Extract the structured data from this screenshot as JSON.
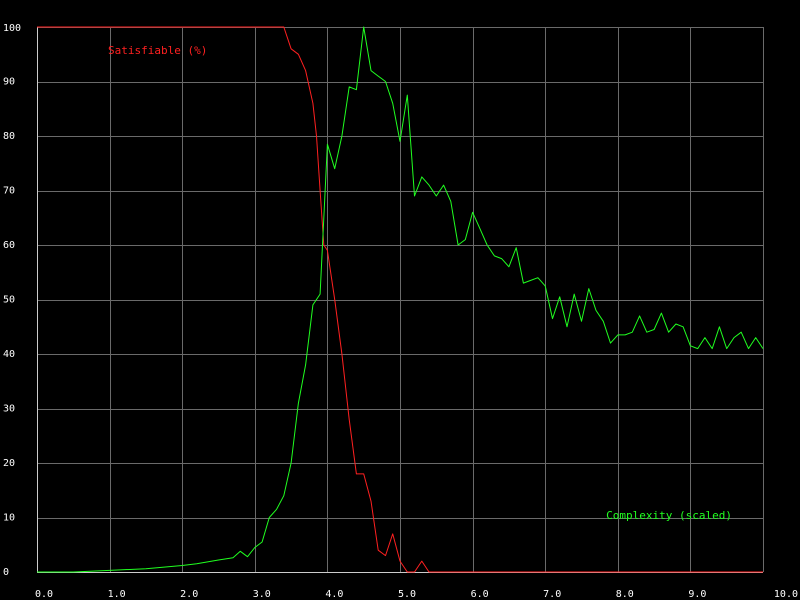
{
  "chart_data": {
    "type": "line",
    "title": "",
    "xlabel": "",
    "ylabel": "",
    "xlim": [
      0,
      10
    ],
    "ylim": [
      0,
      100
    ],
    "x_ticks": [
      "0.0",
      "1.0",
      "2.0",
      "3.0",
      "4.0",
      "5.0",
      "6.0",
      "7.0",
      "8.0",
      "9.0",
      "10.0"
    ],
    "y_ticks": [
      "0",
      "10",
      "20",
      "30",
      "40",
      "50",
      "60",
      "70",
      "80",
      "90",
      "100"
    ],
    "grid": true,
    "background": "#000000",
    "series": [
      {
        "name": "Satisfiable (%)",
        "color": "#ff2020",
        "label_position": "top-left",
        "x": [
          0.0,
          0.5,
          1.0,
          1.5,
          2.0,
          2.5,
          3.0,
          3.2,
          3.4,
          3.5,
          3.6,
          3.7,
          3.8,
          3.85,
          3.9,
          3.95,
          4.0,
          4.1,
          4.2,
          4.3,
          4.4,
          4.5,
          4.6,
          4.7,
          4.8,
          4.9,
          5.0,
          5.1,
          5.2,
          5.3,
          5.4,
          5.5,
          6.0,
          7.0,
          8.0,
          9.0,
          10.0
        ],
        "values": [
          100,
          100,
          100,
          100,
          100,
          100,
          100,
          100,
          100,
          96,
          95,
          92,
          86,
          80,
          70,
          60,
          59,
          50,
          40,
          28,
          18,
          18,
          13,
          4,
          3,
          7,
          2,
          0,
          0,
          2,
          0,
          0,
          0,
          0,
          0,
          0,
          0
        ]
      },
      {
        "name": "Complexity (scaled)",
        "color": "#20ff20",
        "label_position": "bottom-right",
        "x": [
          0.0,
          0.5,
          1.0,
          1.5,
          2.0,
          2.2,
          2.5,
          2.7,
          2.8,
          2.9,
          3.0,
          3.1,
          3.2,
          3.3,
          3.4,
          3.5,
          3.6,
          3.7,
          3.8,
          3.9,
          4.0,
          4.1,
          4.2,
          4.3,
          4.4,
          4.5,
          4.6,
          4.7,
          4.8,
          4.9,
          5.0,
          5.1,
          5.2,
          5.3,
          5.4,
          5.5,
          5.6,
          5.7,
          5.8,
          5.9,
          6.0,
          6.1,
          6.2,
          6.3,
          6.4,
          6.5,
          6.6,
          6.7,
          6.8,
          6.9,
          7.0,
          7.1,
          7.2,
          7.3,
          7.4,
          7.5,
          7.6,
          7.7,
          7.8,
          7.9,
          8.0,
          8.1,
          8.2,
          8.3,
          8.4,
          8.5,
          8.6,
          8.7,
          8.8,
          8.9,
          9.0,
          9.1,
          9.2,
          9.3,
          9.4,
          9.5,
          9.6,
          9.7,
          9.8,
          9.9,
          10.0
        ],
        "values": [
          0,
          0,
          0.3,
          0.6,
          1.2,
          1.5,
          2.2,
          2.6,
          3.8,
          2.8,
          4.5,
          5.5,
          10,
          11.5,
          14,
          20,
          31,
          38,
          49,
          51,
          78.5,
          74,
          80,
          89,
          88.5,
          100,
          92,
          91,
          90,
          86,
          79,
          87.5,
          69,
          72.5,
          71,
          69,
          71,
          68,
          60,
          61,
          66,
          63,
          60,
          58,
          57.5,
          56,
          59.5,
          53,
          53.5,
          54,
          52.5,
          46.5,
          50.5,
          45,
          51,
          46,
          52,
          48,
          46,
          42,
          43.5,
          43.5,
          44,
          47,
          44,
          44.5,
          47.5,
          44,
          45.5,
          45,
          41.5,
          41,
          43,
          41,
          45,
          41,
          43,
          44,
          41,
          43,
          41
        ]
      }
    ]
  }
}
